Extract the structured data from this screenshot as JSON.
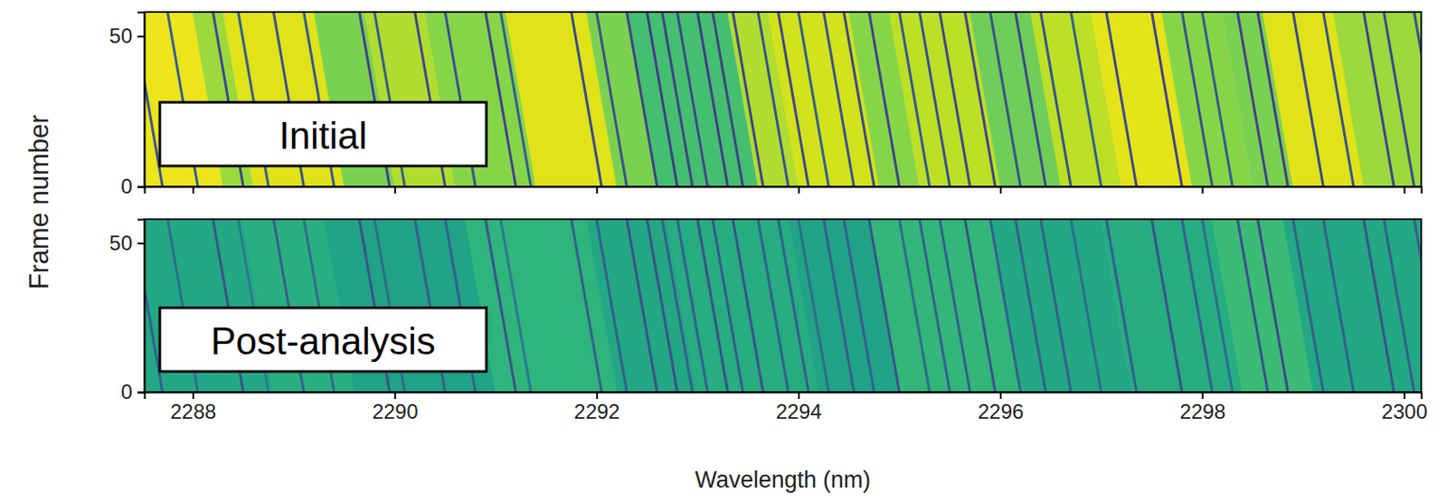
{
  "chart_data": [
    {
      "type": "heatmap",
      "title": "Initial",
      "color": "viridis",
      "y_label": "Frame number",
      "xlim": [
        2287.52,
        2300.17
      ],
      "ylim": [
        0,
        58
      ],
      "xticks": [
        2288,
        2290,
        2292,
        2294,
        2296,
        2298,
        2300
      ],
      "yticks": [
        0,
        50
      ],
      "zlim": [
        0,
        1
      ],
      "tick_labels": "y",
      "bands": {
        "x_start": [
          2287.3,
          2288.3,
          2288.6,
          2289.5,
          2290.0,
          2290.6,
          2291.4,
          2292.2,
          2292.6,
          2293.6,
          2294.0,
          2294.8,
          2295.2,
          2296.0,
          2296.6,
          2297.2,
          2297.9,
          2298.5,
          2298.9,
          2299.6,
          2300.5
        ],
        "x_end": [
          2287.0,
          2288.0,
          2288.3,
          2289.2,
          2289.7,
          2290.3,
          2291.1,
          2291.9,
          2292.3,
          2293.3,
          2293.7,
          2294.5,
          2294.9,
          2295.7,
          2296.3,
          2296.9,
          2297.6,
          2298.2,
          2298.6,
          2299.3,
          2300.2
        ],
        "values": [
          0.97,
          0.85,
          0.95,
          0.8,
          0.88,
          0.82,
          0.95,
          0.8,
          0.7,
          0.88,
          0.93,
          0.82,
          0.9,
          0.78,
          0.9,
          0.96,
          0.82,
          0.8,
          0.95,
          0.85
        ]
      },
      "lines": {
        "x_start": [
          2287.7,
          2288.05,
          2288.5,
          2288.75,
          2289.1,
          2289.4,
          2289.95,
          2290.1,
          2290.5,
          2290.8,
          2291.2,
          2291.35,
          2292.05,
          2292.3,
          2292.6,
          2292.8,
          2292.95,
          2293.1,
          2293.3,
          2293.45,
          2293.65,
          2293.9,
          2294.1,
          2294.3,
          2294.55,
          2294.75,
          2295.0,
          2295.3,
          2295.5,
          2295.7,
          2295.95,
          2296.2,
          2296.45,
          2296.7,
          2297.0,
          2297.35,
          2297.8,
          2298.1,
          2298.3,
          2298.65,
          2298.85,
          2299.2,
          2299.5,
          2299.9,
          2300.1,
          2300.4
        ],
        "x_end": [
          2287.4,
          2287.75,
          2288.2,
          2288.45,
          2288.8,
          2289.1,
          2289.65,
          2289.8,
          2290.2,
          2290.5,
          2290.9,
          2291.05,
          2291.75,
          2292.0,
          2292.3,
          2292.5,
          2292.65,
          2292.8,
          2293.0,
          2293.15,
          2293.35,
          2293.6,
          2293.8,
          2294.0,
          2294.25,
          2294.45,
          2294.7,
          2295.0,
          2295.2,
          2295.4,
          2295.65,
          2295.9,
          2296.15,
          2296.4,
          2296.7,
          2297.05,
          2297.5,
          2297.8,
          2298.0,
          2298.35,
          2298.55,
          2298.9,
          2299.2,
          2299.6,
          2299.8,
          2300.1
        ],
        "values": [
          0.25,
          0.3,
          0.22,
          0.3,
          0.25,
          0.28,
          0.2,
          0.3,
          0.22,
          0.25,
          0.2,
          0.3,
          0.22,
          0.25,
          0.2,
          0.18,
          0.2,
          0.22,
          0.18,
          0.2,
          0.2,
          0.25,
          0.22,
          0.3,
          0.25,
          0.22,
          0.2,
          0.28,
          0.25,
          0.22,
          0.2,
          0.25,
          0.22,
          0.25,
          0.3,
          0.22,
          0.2,
          0.25,
          0.28,
          0.2,
          0.18,
          0.22,
          0.25,
          0.2,
          0.22,
          0.25
        ]
      }
    },
    {
      "type": "heatmap",
      "title": "Post-analysis",
      "color": "viridis",
      "x_label": "Wavelength (nm)",
      "xlim": [
        2287.52,
        2300.17
      ],
      "ylim": [
        0,
        58
      ],
      "xticks": [
        2288,
        2290,
        2292,
        2294,
        2296,
        2298,
        2300
      ],
      "yticks": [
        0,
        50
      ],
      "zlim": [
        0,
        1
      ],
      "bands": {
        "x_start": [
          2287.3,
          2288.8,
          2289.6,
          2291.0,
          2292.2,
          2293.0,
          2294.2,
          2295.0,
          2296.2,
          2297.3,
          2298.4,
          2299.1,
          2300.5
        ],
        "x_end": [
          2287.0,
          2288.5,
          2289.3,
          2290.7,
          2291.9,
          2292.7,
          2293.9,
          2294.7,
          2295.9,
          2297.0,
          2298.1,
          2298.8,
          2300.2
        ],
        "values": [
          0.6,
          0.63,
          0.58,
          0.65,
          0.6,
          0.62,
          0.58,
          0.66,
          0.6,
          0.62,
          0.68,
          0.6
        ]
      },
      "lines": {
        "x_start": [
          2287.7,
          2288.05,
          2288.5,
          2288.75,
          2289.1,
          2289.4,
          2289.95,
          2290.1,
          2290.5,
          2290.8,
          2291.2,
          2291.35,
          2292.05,
          2292.3,
          2292.6,
          2292.8,
          2292.95,
          2293.1,
          2293.3,
          2293.45,
          2293.65,
          2293.9,
          2294.1,
          2294.3,
          2294.55,
          2294.75,
          2295.0,
          2295.3,
          2295.5,
          2295.7,
          2295.95,
          2296.2,
          2296.45,
          2296.7,
          2297.0,
          2297.35,
          2297.8,
          2298.1,
          2298.3,
          2298.65,
          2298.85,
          2299.2,
          2299.5,
          2299.9,
          2300.1,
          2300.4
        ],
        "x_end": [
          2287.4,
          2287.75,
          2288.2,
          2288.45,
          2288.8,
          2289.1,
          2289.65,
          2289.8,
          2290.2,
          2290.5,
          2290.9,
          2291.05,
          2291.75,
          2292.0,
          2292.3,
          2292.5,
          2292.65,
          2292.8,
          2293.0,
          2293.15,
          2293.35,
          2293.6,
          2293.8,
          2294.0,
          2294.25,
          2294.45,
          2294.7,
          2295.0,
          2295.2,
          2295.4,
          2295.65,
          2295.9,
          2296.15,
          2296.4,
          2296.7,
          2297.05,
          2297.5,
          2297.8,
          2298.0,
          2298.35,
          2298.55,
          2298.9,
          2299.2,
          2299.6,
          2299.8,
          2300.1
        ],
        "values": [
          0.3,
          0.35,
          0.25,
          0.4,
          0.3,
          0.35,
          0.25,
          0.35,
          0.3,
          0.3,
          0.25,
          0.4,
          0.3,
          0.3,
          0.25,
          0.25,
          0.3,
          0.3,
          0.25,
          0.28,
          0.25,
          0.3,
          0.3,
          0.35,
          0.3,
          0.3,
          0.25,
          0.35,
          0.3,
          0.3,
          0.25,
          0.3,
          0.3,
          0.3,
          0.35,
          0.3,
          0.25,
          0.3,
          0.35,
          0.25,
          0.22,
          0.3,
          0.3,
          0.25,
          0.3,
          0.3
        ]
      }
    }
  ]
}
